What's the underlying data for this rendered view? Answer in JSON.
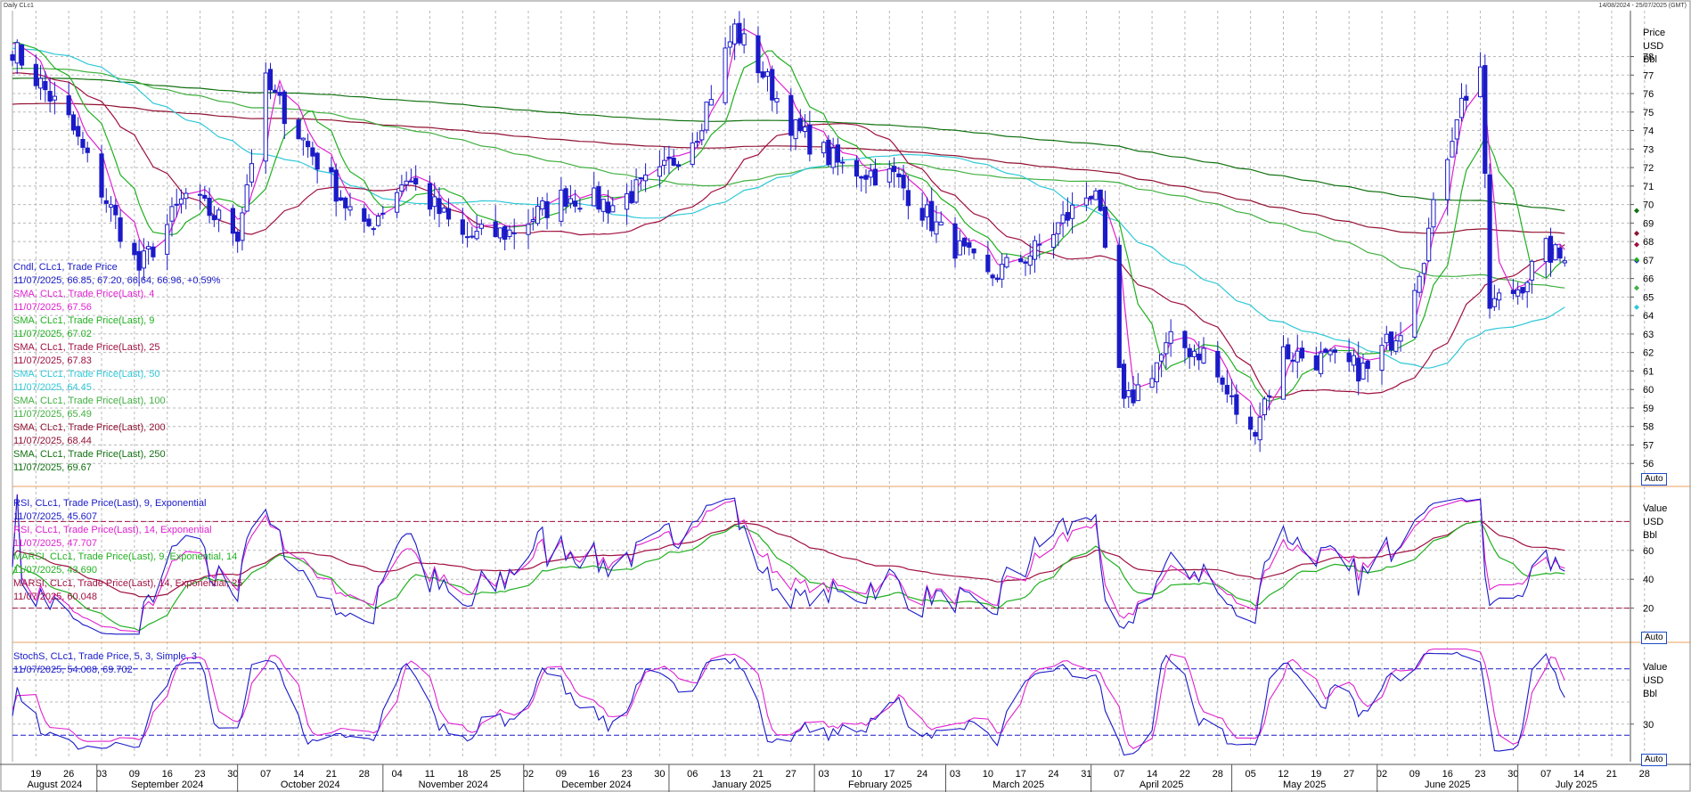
{
  "window": {
    "title": "Daily CLc1",
    "range": "14/08/2024 - 25/07/2025 (GMT)"
  },
  "price_panel": {
    "unit_lines": [
      "Price",
      "USD",
      "Bbl"
    ],
    "ticks": [
      56,
      57,
      58,
      59,
      60,
      61,
      62,
      63,
      64,
      65,
      66,
      67,
      68,
      69,
      70,
      71,
      72,
      73,
      74,
      75,
      76,
      77,
      78
    ],
    "auto_label": "Auto",
    "legend": [
      {
        "label": "Cndl, CLc1, Trade Price",
        "value": "11/07/2025, 66.85, 67.20, 66.64, 66.96, +0.59%",
        "color": "#1a1ac8"
      },
      {
        "label": "SMA, CLc1, Trade Price(Last),  4",
        "value": "11/07/2025, 67.56",
        "color": "#e020d0"
      },
      {
        "label": "SMA, CLc1, Trade Price(Last),  9",
        "value": "11/07/2025, 67.02",
        "color": "#20b020"
      },
      {
        "label": "SMA, CLc1, Trade Price(Last),  25",
        "value": "11/07/2025, 67.83",
        "color": "#a01040"
      },
      {
        "label": "SMA, CLc1, Trade Price(Last),  50",
        "value": "11/07/2025, 64.45",
        "color": "#30c8d8"
      },
      {
        "label": "SMA, CLc1, Trade Price(Last),  100",
        "value": "11/07/2025, 65.49",
        "color": "#40b040"
      },
      {
        "label": "SMA, CLc1, Trade Price(Last),  200",
        "value": "11/07/2025, 68.44",
        "color": "#901030"
      },
      {
        "label": "SMA, CLc1, Trade Price(Last),  250",
        "value": "11/07/2025, 69.67",
        "color": "#107010"
      }
    ]
  },
  "rsi_panel": {
    "unit_lines": [
      "Value",
      "USD",
      "Bbl"
    ],
    "ticks": [
      20,
      40,
      60
    ],
    "auto_label": "Auto",
    "legend": [
      {
        "label": "RSI, CLc1, Trade Price(Last),  9, Exponential",
        "value": "11/07/2025, 45.607",
        "color": "#1a1ac8"
      },
      {
        "label": "RSI, CLc1, Trade Price(Last),  14, Exponential",
        "value": "11/07/2025, 47.707",
        "color": "#e020d0"
      },
      {
        "label": "MARSI, CLc1, Trade Price(Last),  9, Exponential, 14",
        "value": "11/07/2025, 43.690",
        "color": "#20b020"
      },
      {
        "label": "MARSI, CLc1, Trade Price(Last),  14, Exponential, 25",
        "value": "11/07/2025, 60.048",
        "color": "#a01040"
      }
    ]
  },
  "stoch_panel": {
    "unit_lines": [
      "Value",
      "USD",
      "Bbl"
    ],
    "ticks": [
      30
    ],
    "auto_label": "Auto",
    "legend": [
      {
        "label": "StochS, CLc1, Trade Price,  5, 3, Simple, 3",
        "value": "11/07/2025, 54.008, 69.702",
        "color": "#1a1ac8"
      }
    ]
  },
  "x_axis": {
    "day_ticks": [
      "19",
      "26",
      "03",
      "09",
      "16",
      "23",
      "30",
      "07",
      "14",
      "21",
      "28",
      "04",
      "11",
      "18",
      "25",
      "02",
      "09",
      "16",
      "23",
      "30",
      "06",
      "13",
      "21",
      "27",
      "03",
      "10",
      "17",
      "24",
      "03",
      "10",
      "17",
      "24",
      "31",
      "07",
      "14",
      "22",
      "28",
      "05",
      "12",
      "19",
      "27",
      "02",
      "09",
      "16",
      "23",
      "30",
      "07",
      "14",
      "21",
      "28"
    ],
    "months": [
      "August 2024",
      "September 2024",
      "October 2024",
      "November 2024",
      "December 2024",
      "January 2025",
      "February 2025",
      "March 2025",
      "April 2025",
      "May 2025",
      "June 2025",
      "July 2025"
    ]
  },
  "colors": {
    "candle": "#1a1ac8",
    "grid": "#b8b8b8",
    "panel_sep": "#e8a060",
    "band": "#a01040",
    "stoch_band": "#1a1ac8"
  },
  "chart_data": {
    "type": "line",
    "title": "Daily CLc1",
    "x_range": [
      "2024-08-14",
      "2025-07-25"
    ],
    "last_bar": {
      "date": "11/07/2025",
      "open": 66.85,
      "high": 67.2,
      "low": 66.64,
      "close": 66.96,
      "change": "+0.59%"
    },
    "ylim": [
      55,
      80
    ],
    "price_anchor_dates": [
      "2024-08-14",
      "2024-08-26",
      "2024-09-10",
      "2024-09-20",
      "2024-10-01",
      "2024-10-07",
      "2024-10-15",
      "2024-10-28",
      "2024-11-06",
      "2024-11-18",
      "2024-11-28",
      "2024-12-10",
      "2024-12-20",
      "2024-12-30",
      "2025-01-07",
      "2025-01-15",
      "2025-01-20",
      "2025-01-28",
      "2025-02-07",
      "2025-02-18",
      "2025-02-28",
      "2025-03-10",
      "2025-03-20",
      "2025-04-02",
      "2025-04-08",
      "2025-04-18",
      "2025-04-25",
      "2025-05-05",
      "2025-05-12",
      "2025-05-22",
      "2025-05-30",
      "2025-06-06",
      "2025-06-11",
      "2025-06-18",
      "2025-06-23",
      "2025-06-25",
      "2025-07-01",
      "2025-07-07",
      "2025-07-11"
    ],
    "price_anchor_close": [
      78.5,
      74.5,
      66.5,
      70.5,
      68.5,
      76.5,
      73.5,
      68.5,
      71.5,
      68.2,
      68.5,
      70.5,
      70.0,
      71.5,
      74.0,
      79.5,
      77.5,
      74.0,
      72.0,
      71.5,
      68.5,
      66.0,
      67.5,
      71.0,
      59.0,
      62.5,
      62.0,
      57.5,
      62.0,
      61.5,
      61.0,
      63.5,
      67.5,
      75.0,
      77.5,
      64.5,
      65.5,
      67.5,
      66.96
    ],
    "sma_last": {
      "SMA 4": 67.56,
      "SMA 9": 67.02,
      "SMA 25": 67.83,
      "SMA 50": 64.45,
      "SMA 100": 65.49,
      "SMA 200": 68.44,
      "SMA 250": 69.67
    },
    "rsi": {
      "ylim": [
        0,
        100
      ],
      "upper_band": 80,
      "lower_band": 20,
      "last": {
        "RSI 9": 45.607,
        "RSI 14": 47.707,
        "MARSI 9/14": 43.69,
        "MARSI 14/25": 60.048
      }
    },
    "stochastic": {
      "ylim": [
        0,
        100
      ],
      "upper_band": 80,
      "lower_band": 20,
      "last": {
        "%K": 54.008,
        "%D": 69.702
      }
    }
  }
}
